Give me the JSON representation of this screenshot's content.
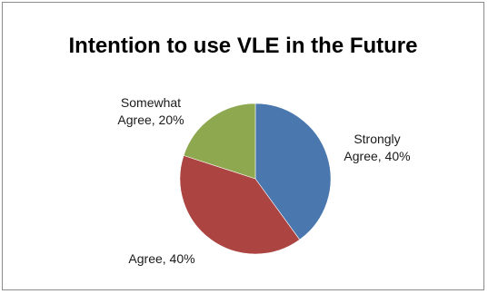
{
  "chart_data": {
    "type": "pie",
    "title": "Intention to use VLE in the Future",
    "start_angle_deg": 0,
    "direction": "clockwise",
    "slices": [
      {
        "label_lines": [
          "Strongly",
          "Agree, 40%"
        ],
        "value": 40,
        "color": "#4a77ad"
      },
      {
        "label_lines": [
          "Agree, 40%"
        ],
        "value": 40,
        "color": "#ac4542"
      },
      {
        "label_lines": [
          "Somewhat",
          "Agree, 20%"
        ],
        "value": 20,
        "color": "#8ea850"
      }
    ],
    "legend": "none"
  }
}
